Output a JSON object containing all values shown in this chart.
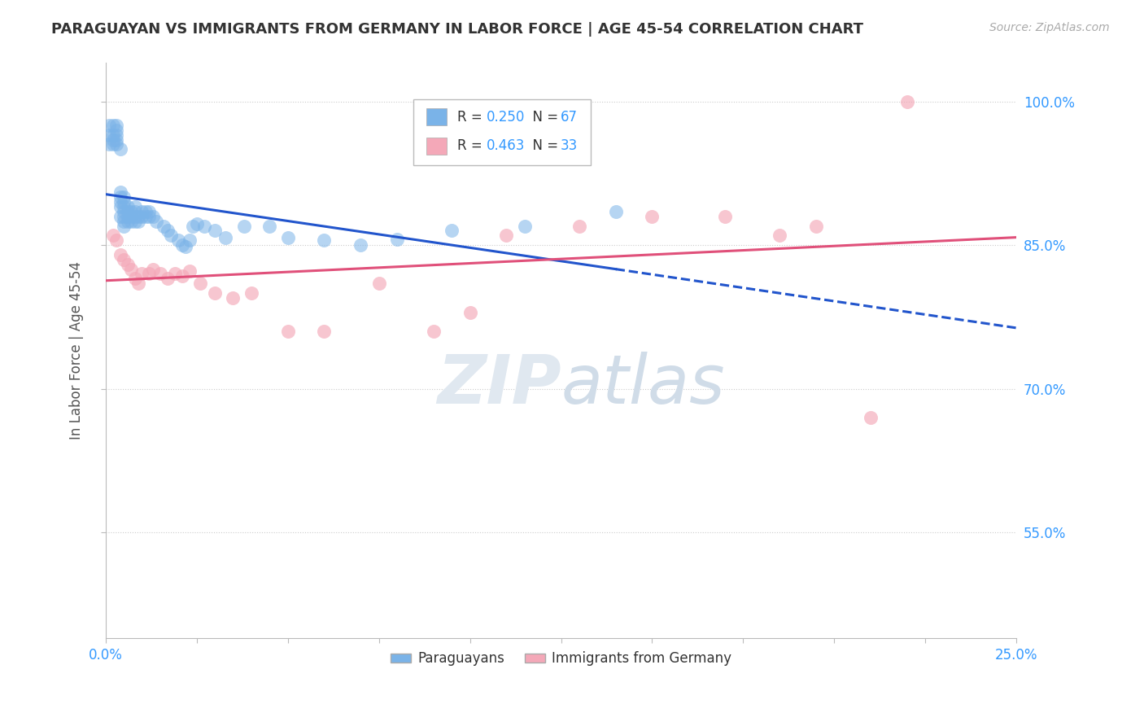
{
  "title": "PARAGUAYAN VS IMMIGRANTS FROM GERMANY IN LABOR FORCE | AGE 45-54 CORRELATION CHART",
  "source": "Source: ZipAtlas.com",
  "ylabel": "In Labor Force | Age 45-54",
  "ytick_labels": [
    "55.0%",
    "70.0%",
    "85.0%",
    "100.0%"
  ],
  "xlim": [
    0.0,
    0.25
  ],
  "ylim": [
    0.44,
    1.04
  ],
  "yticks": [
    0.55,
    0.7,
    0.85,
    1.0
  ],
  "blue_R": 0.25,
  "blue_N": 67,
  "pink_R": 0.463,
  "pink_N": 33,
  "blue_label": "Paraguayans",
  "pink_label": "Immigrants from Germany",
  "blue_color": "#7ab3e8",
  "pink_color": "#f4a8b8",
  "blue_line_color": "#2255cc",
  "pink_line_color": "#e0507a",
  "background_color": "#ffffff",
  "grid_color": "#cccccc",
  "blue_x": [
    0.001,
    0.001,
    0.001,
    0.002,
    0.002,
    0.002,
    0.002,
    0.003,
    0.003,
    0.003,
    0.003,
    0.003,
    0.004,
    0.004,
    0.004,
    0.004,
    0.004,
    0.004,
    0.005,
    0.005,
    0.005,
    0.005,
    0.005,
    0.005,
    0.005,
    0.006,
    0.006,
    0.006,
    0.006,
    0.007,
    0.007,
    0.007,
    0.008,
    0.008,
    0.008,
    0.008,
    0.009,
    0.009,
    0.01,
    0.01,
    0.011,
    0.011,
    0.012,
    0.012,
    0.013,
    0.014,
    0.016,
    0.017,
    0.018,
    0.02,
    0.021,
    0.022,
    0.023,
    0.024,
    0.025,
    0.027,
    0.03,
    0.033,
    0.038,
    0.045,
    0.05,
    0.06,
    0.07,
    0.08,
    0.095,
    0.115,
    0.14
  ],
  "blue_y": [
    0.955,
    0.965,
    0.975,
    0.955,
    0.965,
    0.96,
    0.975,
    0.955,
    0.96,
    0.965,
    0.97,
    0.975,
    0.88,
    0.89,
    0.895,
    0.9,
    0.905,
    0.95,
    0.87,
    0.875,
    0.88,
    0.885,
    0.89,
    0.895,
    0.9,
    0.875,
    0.88,
    0.885,
    0.89,
    0.875,
    0.88,
    0.885,
    0.875,
    0.88,
    0.885,
    0.89,
    0.875,
    0.88,
    0.88,
    0.885,
    0.88,
    0.885,
    0.88,
    0.885,
    0.88,
    0.875,
    0.87,
    0.865,
    0.86,
    0.855,
    0.85,
    0.848,
    0.855,
    0.87,
    0.872,
    0.87,
    0.865,
    0.858,
    0.87,
    0.87,
    0.858,
    0.855,
    0.85,
    0.856,
    0.865,
    0.87,
    0.885
  ],
  "pink_x": [
    0.002,
    0.003,
    0.004,
    0.005,
    0.006,
    0.007,
    0.008,
    0.009,
    0.01,
    0.012,
    0.013,
    0.015,
    0.017,
    0.019,
    0.021,
    0.023,
    0.026,
    0.03,
    0.035,
    0.04,
    0.05,
    0.06,
    0.075,
    0.09,
    0.1,
    0.11,
    0.13,
    0.15,
    0.17,
    0.185,
    0.195,
    0.21,
    0.22
  ],
  "pink_y": [
    0.86,
    0.855,
    0.84,
    0.835,
    0.83,
    0.825,
    0.815,
    0.81,
    0.82,
    0.82,
    0.825,
    0.82,
    0.815,
    0.82,
    0.818,
    0.823,
    0.81,
    0.8,
    0.795,
    0.8,
    0.76,
    0.76,
    0.81,
    0.76,
    0.78,
    0.86,
    0.87,
    0.88,
    0.88,
    0.86,
    0.87,
    0.67,
    1.0
  ]
}
